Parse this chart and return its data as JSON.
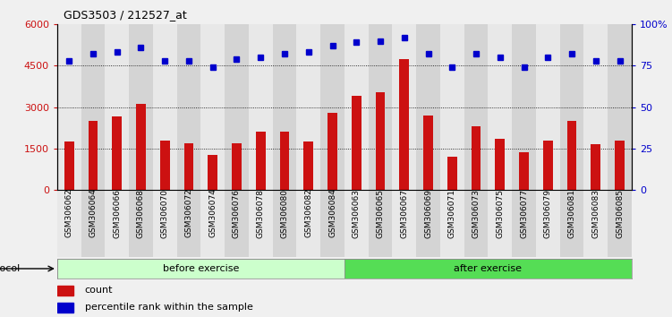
{
  "title": "GDS3503 / 212527_at",
  "samples": [
    "GSM306062",
    "GSM306064",
    "GSM306066",
    "GSM306068",
    "GSM306070",
    "GSM306072",
    "GSM306074",
    "GSM306076",
    "GSM306078",
    "GSM306080",
    "GSM306082",
    "GSM306084",
    "GSM306063",
    "GSM306065",
    "GSM306067",
    "GSM306069",
    "GSM306071",
    "GSM306073",
    "GSM306075",
    "GSM306077",
    "GSM306079",
    "GSM306081",
    "GSM306083",
    "GSM306085"
  ],
  "counts": [
    1750,
    2500,
    2650,
    3100,
    1800,
    1700,
    1250,
    1700,
    2100,
    2100,
    1750,
    2800,
    3400,
    3550,
    4750,
    2700,
    1200,
    2300,
    1850,
    1350,
    1800,
    2500,
    1650,
    1800
  ],
  "percentiles": [
    78,
    82,
    83,
    86,
    78,
    78,
    74,
    79,
    80,
    82,
    83,
    87,
    89,
    90,
    92,
    82,
    74,
    82,
    80,
    74,
    80,
    82,
    78,
    78
  ],
  "n_before": 12,
  "n_after": 12,
  "before_label": "before exercise",
  "after_label": "after exercise",
  "before_color": "#ccffcc",
  "after_color": "#55dd55",
  "bar_color": "#cc1111",
  "dot_color": "#0000cc",
  "ylim_left": [
    0,
    6000
  ],
  "ylim_right": [
    0,
    100
  ],
  "yticks_left": [
    0,
    1500,
    3000,
    4500,
    6000
  ],
  "yticks_right": [
    0,
    25,
    50,
    75,
    100
  ],
  "grid_values": [
    1500,
    3000,
    4500
  ],
  "col_colors": [
    "#e8e8e8",
    "#d4d4d4"
  ],
  "fig_bg": "#f0f0f0"
}
